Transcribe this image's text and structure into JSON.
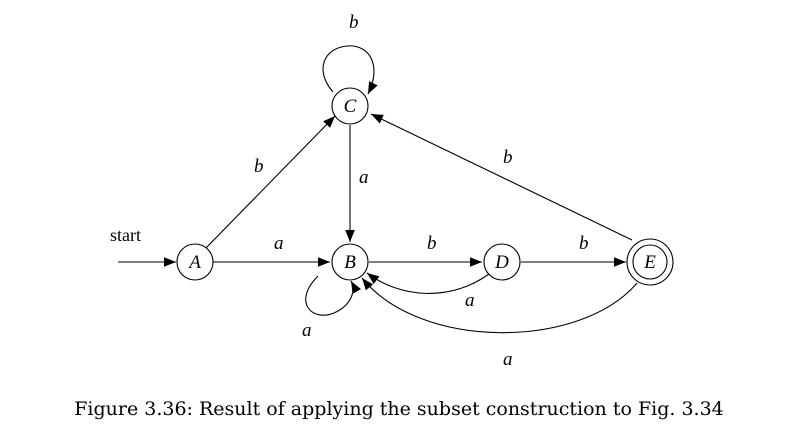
{
  "diagram": {
    "start_label": "start",
    "states": [
      {
        "id": "A",
        "label": "A",
        "accepting": false
      },
      {
        "id": "B",
        "label": "B",
        "accepting": false
      },
      {
        "id": "C",
        "label": "C",
        "accepting": false
      },
      {
        "id": "D",
        "label": "D",
        "accepting": false
      },
      {
        "id": "E",
        "label": "E",
        "accepting": true
      }
    ],
    "transitions": [
      {
        "from": "A",
        "to": "B",
        "symbol": "a"
      },
      {
        "from": "A",
        "to": "C",
        "symbol": "b"
      },
      {
        "from": "B",
        "to": "B",
        "symbol": "a"
      },
      {
        "from": "B",
        "to": "D",
        "symbol": "b"
      },
      {
        "from": "C",
        "to": "C",
        "symbol": "b"
      },
      {
        "from": "C",
        "to": "B",
        "symbol": "a"
      },
      {
        "from": "D",
        "to": "B",
        "symbol": "a"
      },
      {
        "from": "D",
        "to": "E",
        "symbol": "b"
      },
      {
        "from": "E",
        "to": "B",
        "symbol": "a"
      },
      {
        "from": "E",
        "to": "C",
        "symbol": "b"
      }
    ]
  },
  "caption": "Figure 3.36: Result of applying the subset construction to Fig. 3.34"
}
